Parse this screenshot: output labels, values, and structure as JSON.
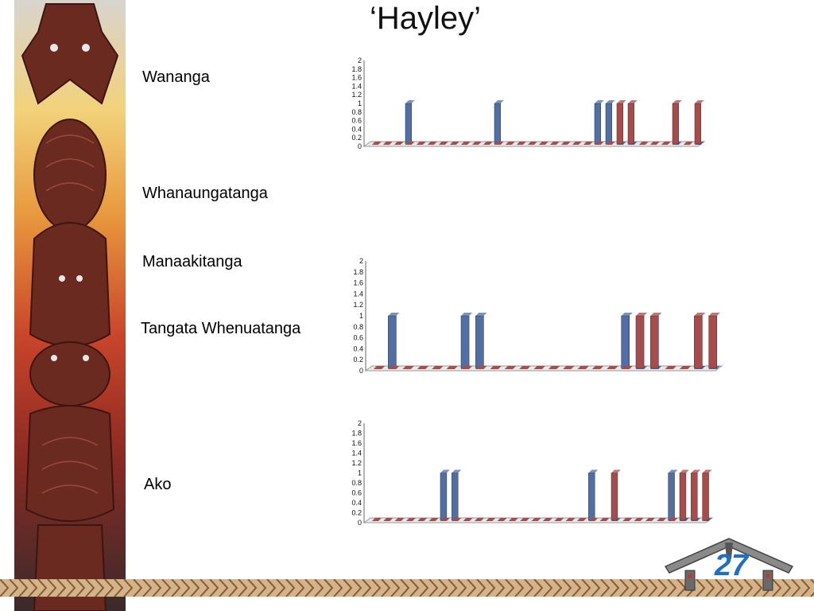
{
  "title": "‘Hayley’",
  "labels": {
    "wananga": "Wananga",
    "whanaungatanga": "Whanaungatanga",
    "manaakitanga": "Manaakitanga",
    "tangata": "Tangata Whenuatanga",
    "ako": "Ako"
  },
  "page_number": "27",
  "colors": {
    "blue": "#4f6fa6",
    "red": "#a84b4b",
    "page_number": "#1f6fc2"
  },
  "chart_data": [
    {
      "type": "bar",
      "yticks": [
        "0",
        "0.2",
        "0.4",
        "0.6",
        "0.8",
        "1",
        "1.2",
        "1.4",
        "1.6",
        "1.8",
        "2"
      ],
      "ylim": [
        0,
        2
      ],
      "series": [
        {
          "color": "blue",
          "values": [
            0,
            0,
            0,
            1,
            0,
            0,
            0,
            0,
            0,
            0,
            0,
            1,
            0,
            0,
            0,
            0,
            0,
            0,
            0,
            0,
            1,
            1,
            0,
            0,
            0,
            0,
            0,
            0,
            0,
            0
          ]
        },
        {
          "color": "red",
          "values": [
            0,
            0,
            0,
            0,
            0,
            0,
            0,
            0,
            0,
            0,
            0,
            0,
            0,
            0,
            0,
            0,
            0,
            0,
            0,
            0,
            0,
            0,
            1,
            1,
            0,
            0,
            0,
            1,
            0,
            1
          ]
        }
      ]
    },
    {
      "type": "bar",
      "yticks": [
        "0",
        "0.2",
        "0.4",
        "0.6",
        "0.8",
        "1",
        "1.2",
        "1.4",
        "1.6",
        "1.8",
        "2"
      ],
      "ylim": [
        0,
        2
      ],
      "series": [
        {
          "color": "blue",
          "values": [
            0,
            1,
            0,
            0,
            0,
            0,
            1,
            1,
            0,
            0,
            0,
            0,
            0,
            0,
            0,
            0,
            0,
            1,
            0,
            0,
            0,
            0,
            0,
            0
          ]
        },
        {
          "color": "red",
          "values": [
            0,
            0,
            0,
            0,
            0,
            0,
            0,
            0,
            0,
            0,
            0,
            0,
            0,
            0,
            0,
            0,
            0,
            0,
            1,
            1,
            0,
            0,
            1,
            1
          ]
        }
      ]
    },
    {
      "type": "bar",
      "yticks": [
        "0",
        "0.2",
        "0.4",
        "0.6",
        "0.8",
        "1",
        "1.2",
        "1.4",
        "1.6",
        "1.8",
        "2"
      ],
      "ylim": [
        0,
        2
      ],
      "series": [
        {
          "color": "blue",
          "values": [
            0,
            0,
            0,
            0,
            0,
            0,
            1,
            1,
            0,
            0,
            0,
            0,
            0,
            0,
            0,
            0,
            0,
            0,
            0,
            1,
            0,
            0,
            0,
            0,
            0,
            0,
            1,
            0,
            0,
            0
          ]
        },
        {
          "color": "red",
          "values": [
            0,
            0,
            0,
            0,
            0,
            0,
            0,
            0,
            0,
            0,
            0,
            0,
            0,
            0,
            0,
            0,
            0,
            0,
            0,
            0,
            0,
            1,
            0,
            0,
            0,
            0,
            0,
            1,
            1,
            1
          ]
        }
      ]
    }
  ]
}
